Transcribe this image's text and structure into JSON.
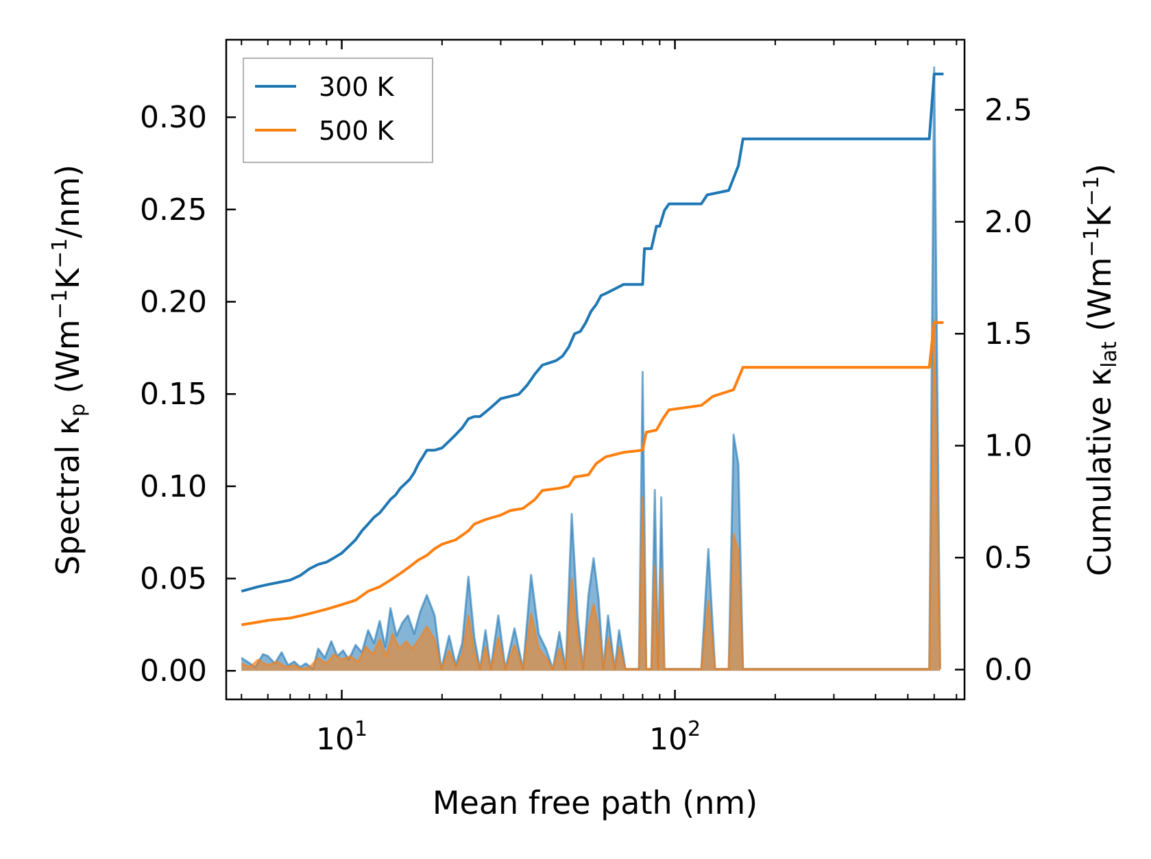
{
  "chart_data": {
    "type": "line",
    "title": "",
    "xlabel": "Mean free path (nm)",
    "xscale": "log",
    "xlim": [
      4.5,
      740
    ],
    "x_ticks": [
      {
        "value": 10,
        "base": "10",
        "exp": "1"
      },
      {
        "value": 100,
        "base": "10",
        "exp": "2"
      }
    ],
    "y_left": {
      "label_prefix": "Spectral κ",
      "label_sub": "p",
      "label_units": " (Wm",
      "label_exp1": "−1",
      "label_mid": "K",
      "label_exp2": "−1",
      "label_tail": "/nm)",
      "ylim": [
        -0.0155,
        0.342
      ],
      "ticks": [
        {
          "value": 0.0,
          "label": "0.00"
        },
        {
          "value": 0.05,
          "label": "0.05"
        },
        {
          "value": 0.1,
          "label": "0.10"
        },
        {
          "value": 0.15,
          "label": "0.15"
        },
        {
          "value": 0.2,
          "label": "0.20"
        },
        {
          "value": 0.25,
          "label": "0.25"
        },
        {
          "value": 0.3,
          "label": "0.30"
        }
      ]
    },
    "y_right": {
      "label_prefix": "Cumulative κ",
      "label_sub": "lat",
      "label_units": " (Wm",
      "label_exp1": "−1",
      "label_mid": "K",
      "label_exp2": "−1",
      "label_tail": ")",
      "ylim": [
        -0.133,
        2.813
      ],
      "ticks": [
        {
          "value": 0.0,
          "label": "0.0"
        },
        {
          "value": 0.5,
          "label": "0.5"
        },
        {
          "value": 1.0,
          "label": "1.0"
        },
        {
          "value": 1.5,
          "label": "1.5"
        },
        {
          "value": 2.0,
          "label": "2.0"
        },
        {
          "value": 2.5,
          "label": "2.5"
        }
      ]
    },
    "legend": {
      "position": "top-left",
      "entries": [
        {
          "label": "300 K",
          "color": "#1f77b4"
        },
        {
          "label": "500 K",
          "color": "#ff7f0e"
        }
      ]
    },
    "series": [
      {
        "name": "300 K cumulative",
        "color": "#1f77b4",
        "axis": "right",
        "points": [
          [
            5.0,
            0.35
          ],
          [
            5.3,
            0.36
          ],
          [
            5.6,
            0.37
          ],
          [
            6.0,
            0.38
          ],
          [
            6.5,
            0.39
          ],
          [
            7.0,
            0.4
          ],
          [
            7.5,
            0.42
          ],
          [
            8.0,
            0.45
          ],
          [
            8.5,
            0.47
          ],
          [
            9.0,
            0.48
          ],
          [
            9.5,
            0.5
          ],
          [
            10.0,
            0.52
          ],
          [
            10.5,
            0.55
          ],
          [
            11.0,
            0.58
          ],
          [
            11.5,
            0.62
          ],
          [
            12.0,
            0.65
          ],
          [
            12.5,
            0.68
          ],
          [
            13.0,
            0.7
          ],
          [
            13.5,
            0.73
          ],
          [
            14.0,
            0.76
          ],
          [
            14.5,
            0.78
          ],
          [
            15.0,
            0.81
          ],
          [
            15.5,
            0.83
          ],
          [
            16.0,
            0.85
          ],
          [
            16.5,
            0.88
          ],
          [
            17.0,
            0.92
          ],
          [
            17.5,
            0.95
          ],
          [
            18.0,
            0.98
          ],
          [
            19.0,
            0.98
          ],
          [
            20.0,
            0.99
          ],
          [
            21.0,
            1.02
          ],
          [
            22.0,
            1.05
          ],
          [
            23.0,
            1.08
          ],
          [
            24.0,
            1.12
          ],
          [
            25.0,
            1.13
          ],
          [
            26.0,
            1.13
          ],
          [
            27.0,
            1.15
          ],
          [
            28.0,
            1.17
          ],
          [
            29.0,
            1.19
          ],
          [
            30.0,
            1.21
          ],
          [
            32.0,
            1.22
          ],
          [
            34.0,
            1.23
          ],
          [
            36.0,
            1.27
          ],
          [
            38.0,
            1.32
          ],
          [
            40.0,
            1.36
          ],
          [
            42.0,
            1.37
          ],
          [
            44.0,
            1.38
          ],
          [
            46.0,
            1.4
          ],
          [
            48.0,
            1.44
          ],
          [
            50.0,
            1.5
          ],
          [
            52.0,
            1.51
          ],
          [
            54.0,
            1.55
          ],
          [
            56.0,
            1.6
          ],
          [
            58.0,
            1.63
          ],
          [
            60.0,
            1.67
          ],
          [
            62.0,
            1.68
          ],
          [
            64.0,
            1.69
          ],
          [
            66.0,
            1.7
          ],
          [
            70.0,
            1.72
          ],
          [
            80.0,
            1.72
          ],
          [
            81.0,
            1.88
          ],
          [
            85.0,
            1.88
          ],
          [
            88.0,
            1.98
          ],
          [
            90.0,
            1.98
          ],
          [
            93.0,
            2.05
          ],
          [
            96.0,
            2.08
          ],
          [
            120.0,
            2.08
          ],
          [
            125.0,
            2.12
          ],
          [
            145.0,
            2.14
          ],
          [
            155.0,
            2.25
          ],
          [
            160.0,
            2.37
          ],
          [
            580.0,
            2.37
          ],
          [
            600.0,
            2.66
          ],
          [
            640.0,
            2.66
          ]
        ]
      },
      {
        "name": "500 K cumulative",
        "color": "#ff7f0e",
        "axis": "right",
        "points": [
          [
            5.0,
            0.2
          ],
          [
            5.5,
            0.21
          ],
          [
            6.0,
            0.22
          ],
          [
            7.0,
            0.23
          ],
          [
            7.5,
            0.24
          ],
          [
            8.0,
            0.25
          ],
          [
            8.5,
            0.26
          ],
          [
            9.0,
            0.27
          ],
          [
            10.0,
            0.29
          ],
          [
            11.0,
            0.31
          ],
          [
            12.0,
            0.35
          ],
          [
            13.0,
            0.37
          ],
          [
            14.0,
            0.4
          ],
          [
            15.0,
            0.43
          ],
          [
            16.0,
            0.46
          ],
          [
            17.0,
            0.49
          ],
          [
            18.0,
            0.51
          ],
          [
            19.0,
            0.54
          ],
          [
            20.0,
            0.56
          ],
          [
            22.0,
            0.58
          ],
          [
            24.0,
            0.62
          ],
          [
            25.0,
            0.65
          ],
          [
            27.0,
            0.67
          ],
          [
            30.0,
            0.69
          ],
          [
            32.0,
            0.71
          ],
          [
            35.0,
            0.72
          ],
          [
            38.0,
            0.76
          ],
          [
            40.0,
            0.8
          ],
          [
            45.0,
            0.81
          ],
          [
            48.0,
            0.82
          ],
          [
            50.0,
            0.86
          ],
          [
            55.0,
            0.87
          ],
          [
            58.0,
            0.92
          ],
          [
            62.0,
            0.95
          ],
          [
            70.0,
            0.97
          ],
          [
            80.0,
            0.98
          ],
          [
            82.0,
            1.06
          ],
          [
            88.0,
            1.07
          ],
          [
            92.0,
            1.12
          ],
          [
            96.0,
            1.16
          ],
          [
            120.0,
            1.18
          ],
          [
            130.0,
            1.22
          ],
          [
            150.0,
            1.25
          ],
          [
            160.0,
            1.35
          ],
          [
            580.0,
            1.35
          ],
          [
            600.0,
            1.55
          ],
          [
            640.0,
            1.55
          ]
        ]
      },
      {
        "name": "300 K spectral",
        "color": "#1f77b4",
        "axis": "left",
        "fill": true,
        "points": [
          [
            5.0,
            0.007
          ],
          [
            5.2,
            0.005
          ],
          [
            5.5,
            0.002
          ],
          [
            5.8,
            0.009
          ],
          [
            6.0,
            0.008
          ],
          [
            6.3,
            0.004
          ],
          [
            6.6,
            0.01
          ],
          [
            6.9,
            0.003
          ],
          [
            7.2,
            0.005
          ],
          [
            7.5,
            0.002
          ],
          [
            7.8,
            0.004
          ],
          [
            8.2,
            0.001
          ],
          [
            8.5,
            0.012
          ],
          [
            8.9,
            0.007
          ],
          [
            9.3,
            0.016
          ],
          [
            9.7,
            0.008
          ],
          [
            10.1,
            0.011
          ],
          [
            10.5,
            0.006
          ],
          [
            11.0,
            0.014
          ],
          [
            11.5,
            0.01
          ],
          [
            12.0,
            0.022
          ],
          [
            12.5,
            0.015
          ],
          [
            13.0,
            0.027
          ],
          [
            13.5,
            0.013
          ],
          [
            14.0,
            0.034
          ],
          [
            14.6,
            0.019
          ],
          [
            15.2,
            0.026
          ],
          [
            15.8,
            0.03
          ],
          [
            16.5,
            0.02
          ],
          [
            17.2,
            0.032
          ],
          [
            18.0,
            0.041
          ],
          [
            19.0,
            0.03
          ],
          [
            19.9,
            0.001
          ],
          [
            21.0,
            0.019
          ],
          [
            22.0,
            0.003
          ],
          [
            23.0,
            0.015
          ],
          [
            24.0,
            0.051
          ],
          [
            25.0,
            0.018
          ],
          [
            26.0,
            0.001
          ],
          [
            27.0,
            0.022
          ],
          [
            28.0,
            0.001
          ],
          [
            29.5,
            0.03
          ],
          [
            31.0,
            0.001
          ],
          [
            33.0,
            0.023
          ],
          [
            35.0,
            0.001
          ],
          [
            37.0,
            0.052
          ],
          [
            39.0,
            0.02
          ],
          [
            41.0,
            0.012
          ],
          [
            43.0,
            0.001
          ],
          [
            45.0,
            0.021
          ],
          [
            47.0,
            0.001
          ],
          [
            49.0,
            0.085
          ],
          [
            51.0,
            0.03
          ],
          [
            53.0,
            0.001
          ],
          [
            55.0,
            0.041
          ],
          [
            57.0,
            0.061
          ],
          [
            59.0,
            0.039
          ],
          [
            61.0,
            0.001
          ],
          [
            63.0,
            0.03
          ],
          [
            66.0,
            0.001
          ],
          [
            68.0,
            0.022
          ],
          [
            71.0,
            0.001
          ],
          [
            78.0,
            0.001
          ],
          [
            80.0,
            0.162
          ],
          [
            82.0,
            0.001
          ],
          [
            85.0,
            0.001
          ],
          [
            87.0,
            0.098
          ],
          [
            89.0,
            0.001
          ],
          [
            91.0,
            0.094
          ],
          [
            93.0,
            0.001
          ],
          [
            120.0,
            0.001
          ],
          [
            126.0,
            0.066
          ],
          [
            132.0,
            0.001
          ],
          [
            145.0,
            0.001
          ],
          [
            150.0,
            0.128
          ],
          [
            155.0,
            0.112
          ],
          [
            160.0,
            0.001
          ],
          [
            580.0,
            0.001
          ],
          [
            600.0,
            0.327
          ],
          [
            625.0,
            0.001
          ]
        ]
      },
      {
        "name": "500 K spectral",
        "color": "#ff7f0e",
        "axis": "left",
        "fill": true,
        "points": [
          [
            5.0,
            0.004
          ],
          [
            5.3,
            0.002
          ],
          [
            5.6,
            0.006
          ],
          [
            6.0,
            0.003
          ],
          [
            6.4,
            0.005
          ],
          [
            6.8,
            0.002
          ],
          [
            7.2,
            0.003
          ],
          [
            7.6,
            0.001
          ],
          [
            8.0,
            0.002
          ],
          [
            8.5,
            0.007
          ],
          [
            9.0,
            0.004
          ],
          [
            9.5,
            0.009
          ],
          [
            10.0,
            0.006
          ],
          [
            10.6,
            0.008
          ],
          [
            11.2,
            0.005
          ],
          [
            11.8,
            0.013
          ],
          [
            12.4,
            0.009
          ],
          [
            13.0,
            0.017
          ],
          [
            13.6,
            0.008
          ],
          [
            14.2,
            0.02
          ],
          [
            14.9,
            0.012
          ],
          [
            15.6,
            0.016
          ],
          [
            16.3,
            0.012
          ],
          [
            17.2,
            0.018
          ],
          [
            18.0,
            0.024
          ],
          [
            19.0,
            0.017
          ],
          [
            19.9,
            0.001
          ],
          [
            21.0,
            0.011
          ],
          [
            22.0,
            0.002
          ],
          [
            23.0,
            0.009
          ],
          [
            24.0,
            0.03
          ],
          [
            25.0,
            0.01
          ],
          [
            26.0,
            0.001
          ],
          [
            27.0,
            0.013
          ],
          [
            28.0,
            0.001
          ],
          [
            29.5,
            0.018
          ],
          [
            31.0,
            0.001
          ],
          [
            33.0,
            0.014
          ],
          [
            35.0,
            0.001
          ],
          [
            37.0,
            0.031
          ],
          [
            39.0,
            0.012
          ],
          [
            41.0,
            0.007
          ],
          [
            43.0,
            0.001
          ],
          [
            45.0,
            0.012
          ],
          [
            47.0,
            0.001
          ],
          [
            49.0,
            0.05
          ],
          [
            51.0,
            0.018
          ],
          [
            53.0,
            0.001
          ],
          [
            55.0,
            0.024
          ],
          [
            57.0,
            0.036
          ],
          [
            59.0,
            0.023
          ],
          [
            61.0,
            0.001
          ],
          [
            63.0,
            0.018
          ],
          [
            66.0,
            0.001
          ],
          [
            68.0,
            0.013
          ],
          [
            71.0,
            0.001
          ],
          [
            78.0,
            0.001
          ],
          [
            80.0,
            0.094
          ],
          [
            82.0,
            0.001
          ],
          [
            85.0,
            0.001
          ],
          [
            87.0,
            0.057
          ],
          [
            89.0,
            0.001
          ],
          [
            91.0,
            0.055
          ],
          [
            93.0,
            0.001
          ],
          [
            120.0,
            0.001
          ],
          [
            126.0,
            0.038
          ],
          [
            132.0,
            0.001
          ],
          [
            145.0,
            0.001
          ],
          [
            150.0,
            0.074
          ],
          [
            155.0,
            0.065
          ],
          [
            160.0,
            0.001
          ],
          [
            580.0,
            0.001
          ],
          [
            600.0,
            0.19
          ],
          [
            625.0,
            0.001
          ]
        ]
      }
    ]
  }
}
